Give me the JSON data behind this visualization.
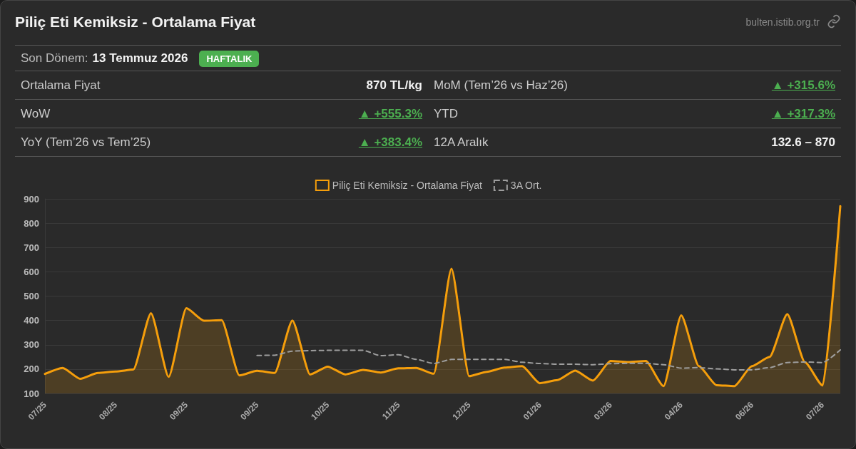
{
  "chart_data": {
    "type": "area",
    "title": "Piliç Eti Kemiksiz - Ortalama Fiyat",
    "annotations": [
      "bulten.istib.org.tr",
      "Son Dönem:",
      "13 Temmuz 2026",
      "HAFTALIK",
      "Ortalama Fiyat",
      "870 TL/kg",
      "MoM (Tem’26 vs Haz’26)",
      "▲ +315.6%",
      "WoW",
      "▲ +555.3%",
      "YTD",
      "▲ +317.3%",
      "YoY (Tem’26 vs Tem’25)",
      "▲ +383.4%",
      "12A Aralık",
      "132.6 – 870"
    ],
    "categories": [
      "07/25",
      null,
      null,
      null,
      "08/25",
      null,
      null,
      null,
      "09/25",
      null,
      null,
      null,
      "09/25",
      null,
      null,
      null,
      "10/25",
      null,
      null,
      null,
      "11/25",
      null,
      null,
      null,
      "12/25",
      null,
      null,
      null,
      "01/26",
      null,
      null,
      null,
      "03/26",
      null,
      null,
      null,
      "04/26",
      null,
      null,
      null,
      "06/26",
      null,
      null,
      null,
      "07/26",
      null
    ],
    "series": [
      {
        "name": "Piliç Eti Kemiksiz - Ortalama Fiyat",
        "color": "#f59e0b",
        "values": [
          180,
          205,
          160,
          184,
          190,
          198,
          430,
          168,
          450,
          399,
          401,
          174,
          193,
          184,
          400,
          178,
          210,
          178,
          197,
          186,
          203,
          205,
          181,
          613,
          171,
          189,
          206,
          212,
          142,
          155,
          194,
          153,
          233,
          229,
          233,
          130,
          421,
          212,
          134,
          130,
          212,
          250,
          426,
          228,
          132.6,
          870
        ]
      },
      {
        "name": "3A Ort.",
        "type": "line",
        "line_style": "dashed",
        "color": "#9e9e9e",
        "values": [
          null,
          null,
          null,
          null,
          null,
          null,
          null,
          null,
          null,
          null,
          null,
          null,
          256,
          257,
          274,
          276,
          277,
          277,
          277,
          255,
          259,
          240,
          223,
          240,
          240,
          240,
          240,
          228,
          223,
          220,
          220,
          218,
          222,
          224,
          224,
          218,
          204,
          206,
          201,
          197,
          197,
          206,
          227,
          229,
          227,
          279
        ]
      }
    ],
    "ylim": [
      100,
      900
    ],
    "yticks": [
      100,
      200,
      300,
      400,
      500,
      600,
      700,
      800,
      900
    ],
    "grid": "y",
    "legend": "top",
    "marker": "none"
  }
}
